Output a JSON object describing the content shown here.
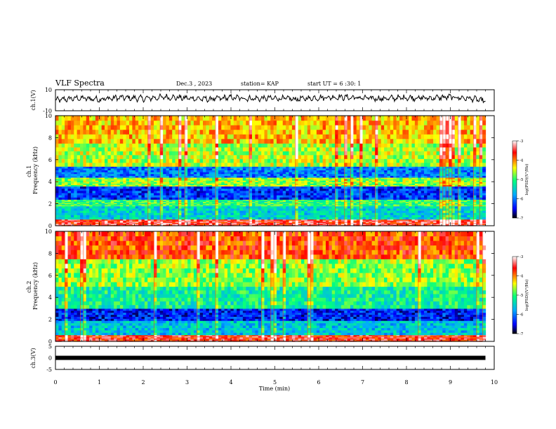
{
  "header": {
    "title": "VLF Spectra",
    "date": "Dec.3 , 2023",
    "station": "station= KAP",
    "start_ut": "start UT = 6 :30: 1"
  },
  "colorbar": {
    "label": "log(PSD)(V²/Hz)",
    "ticks": [
      "-3",
      "-4",
      "-5",
      "-6",
      "-7"
    ],
    "range": [
      -7,
      -3
    ],
    "colors": [
      "#000000",
      "#0000ff",
      "#00aaff",
      "#00ff80",
      "#ffff00",
      "#ff0000",
      "#ffffff"
    ]
  },
  "chart_data": [
    {
      "type": "line",
      "name": "ch1-waveform",
      "ylabel": "ch.1(V)",
      "ylim": [
        -10,
        10
      ],
      "yticks": [
        "10",
        "-10"
      ],
      "xlim": [
        0,
        10
      ],
      "note": "noisy waveform oscillating roughly between -4 and +6 V across 0–9.8 min",
      "x": [
        0,
        0.5,
        1,
        1.5,
        2,
        2.5,
        3,
        3.5,
        4,
        4.5,
        5,
        5.5,
        6,
        6.5,
        7,
        7.5,
        8,
        8.5,
        9,
        9.5,
        9.8
      ],
      "y": [
        0,
        2,
        1,
        2.5,
        1.5,
        3,
        2,
        1,
        2.5,
        1.5,
        2,
        1,
        2.5,
        3,
        2,
        1.5,
        2.5,
        2,
        3,
        1.5,
        -1
      ]
    },
    {
      "type": "heatmap",
      "name": "ch1-spectrogram",
      "ylabel": "ch.1 Frequency (kHz)",
      "ylim": [
        0,
        10
      ],
      "yticks": [
        "0",
        "2",
        "4",
        "6",
        "8",
        "10"
      ],
      "xlim": [
        0,
        10
      ],
      "x_extent": [
        0,
        9.8
      ],
      "bands_kHz": [
        {
          "from": 0,
          "to": 0.6,
          "level": -3.5
        },
        {
          "from": 0.6,
          "to": 1.8,
          "level": -5.5
        },
        {
          "from": 1.8,
          "to": 2.4,
          "level": -5.0
        },
        {
          "from": 2.4,
          "to": 3.6,
          "level": -6.3
        },
        {
          "from": 3.6,
          "to": 4.4,
          "level": -4.7
        },
        {
          "from": 4.4,
          "to": 5.4,
          "level": -6.0
        },
        {
          "from": 5.4,
          "to": 7.5,
          "level": -4.6
        },
        {
          "from": 7.5,
          "to": 10,
          "level": -4.2
        }
      ]
    },
    {
      "type": "heatmap",
      "name": "ch2-spectrogram",
      "ylabel": "ch.2 Frequency (kHz)",
      "ylim": [
        0,
        10
      ],
      "yticks": [
        "0",
        "2",
        "4",
        "6",
        "8",
        "10"
      ],
      "xlim": [
        0,
        10
      ],
      "x_extent": [
        0,
        9.8
      ],
      "bands_kHz": [
        {
          "from": 0,
          "to": 0.6,
          "level": -3.6
        },
        {
          "from": 0.6,
          "to": 1.9,
          "level": -5.6
        },
        {
          "from": 1.9,
          "to": 3.0,
          "level": -6.4
        },
        {
          "from": 3.0,
          "to": 5.0,
          "level": -5.2
        },
        {
          "from": 5.0,
          "to": 7.5,
          "level": -4.7
        },
        {
          "from": 7.5,
          "to": 10,
          "level": -3.8
        }
      ]
    },
    {
      "type": "line",
      "name": "ch3-waveform",
      "ylabel": "ch.3(V)",
      "ylim": [
        -5,
        5
      ],
      "yticks": [
        "5",
        "0",
        "-5"
      ],
      "xlim": [
        0,
        10
      ],
      "xticks": [
        "0",
        "1",
        "2",
        "3",
        "4",
        "5",
        "6",
        "7",
        "8",
        "9",
        "10"
      ],
      "xlabel": "Time (min)",
      "x": [
        0,
        9.8
      ],
      "y": [
        0,
        0
      ],
      "note": "flat thick signal at about 0 V"
    }
  ]
}
